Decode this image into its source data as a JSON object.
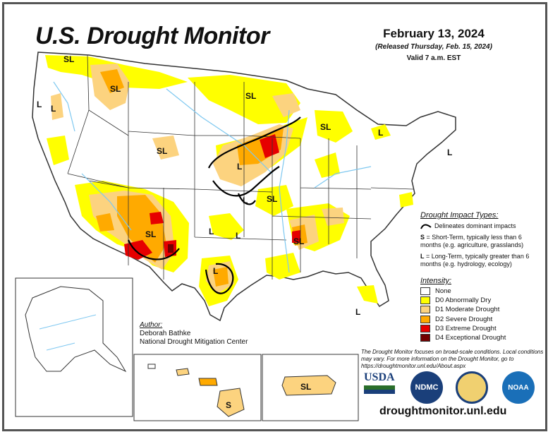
{
  "header": {
    "title": "U.S. Drought Monitor",
    "date": "February 13, 2024",
    "released": "(Released Thursday, Feb. 15, 2024)",
    "valid": "Valid 7 a.m. EST"
  },
  "impact_types": {
    "heading": "Drought Impact Types:",
    "delineates": "Delineates dominant impacts",
    "short_term_key": "S",
    "short_term_text": " = Short-Term, typically less than 6 months (e.g. agriculture, grasslands)",
    "long_term_key": "L",
    "long_term_text": " = Long-Term, typically greater than 6 months (e.g. hydrology, ecology)"
  },
  "intensity": {
    "heading": "Intensity:",
    "levels": [
      {
        "label": "None",
        "color": "#ffffff"
      },
      {
        "label": "D0 Abnormally Dry",
        "color": "#ffff00"
      },
      {
        "label": "D1 Moderate Drought",
        "color": "#fcd37f"
      },
      {
        "label": "D2 Severe Drought",
        "color": "#ffaa00"
      },
      {
        "label": "D3 Extreme Drought",
        "color": "#e60000"
      },
      {
        "label": "D4 Exceptional Drought",
        "color": "#730000"
      }
    ]
  },
  "author": {
    "label": "Author:",
    "name": "Deborah Bathke",
    "org": "National Drought Mitigation Center"
  },
  "note": "The Drought Monitor focuses on broad-scale conditions. Local conditions may vary. For more information on the Drought Monitor, go to https://droughtmonitor.unl.edu/About.aspx",
  "url": "droughtmonitor.unl.edu",
  "logos": {
    "usda": "USDA",
    "ndmc": "NDMC",
    "noaa": "NOAA"
  },
  "map_labels": {
    "sl": "SL",
    "l": "L",
    "s": "S"
  },
  "colors": {
    "d0": "#ffff00",
    "d1": "#fcd37f",
    "d2": "#ffaa00",
    "d3": "#e60000",
    "d4": "#730000",
    "water": "#7ec8f0",
    "state_line": "#333333"
  }
}
